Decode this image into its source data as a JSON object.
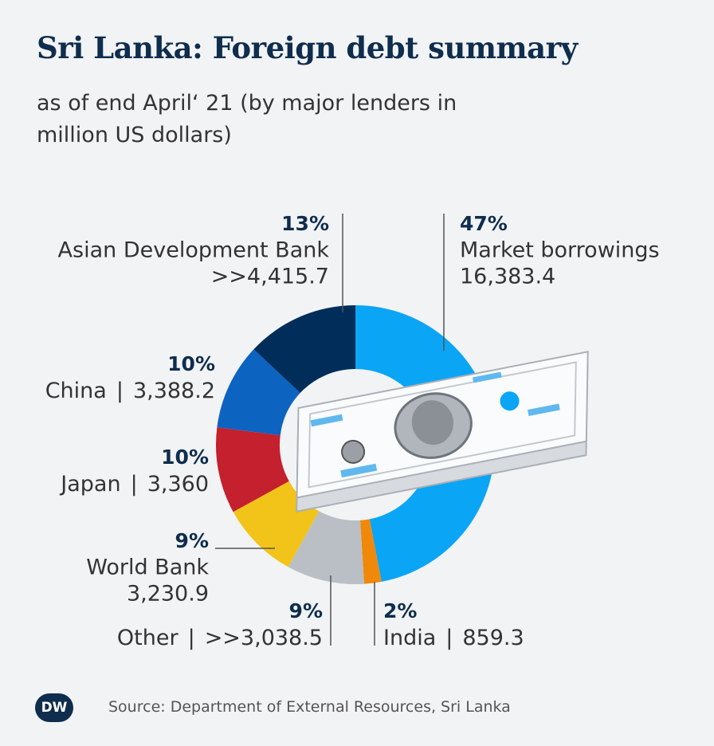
{
  "chart_data": {
    "type": "donut",
    "title": "Sri Lanka: Foreign debt summary",
    "subtitle": "as of end April‘ 21 (by major lenders in million US dollars)",
    "categories": [
      "Market borrowings",
      "India",
      "Other",
      "World Bank",
      "Japan",
      "China",
      "Asian Development Bank"
    ],
    "values": [
      47,
      2,
      9,
      9,
      10,
      10,
      13
    ],
    "value_labels": [
      "47%",
      "2%",
      "9%",
      "9%",
      "10%",
      "10%",
      "13%"
    ],
    "amount_labels": [
      "16,383.4",
      "859.3",
      ">>3,038.5",
      "3,230.9",
      "3,360",
      "3,388.2",
      ">>4,415.7"
    ],
    "separator": "|",
    "colors": [
      "#0aa5f5",
      "#f0880a",
      "#b9bfc5",
      "#f2c318",
      "#c4202d",
      "#0d63c0",
      "#002d5a"
    ],
    "source": "Source: Department of External Resources, Sri Lanka",
    "logo": "DW"
  }
}
